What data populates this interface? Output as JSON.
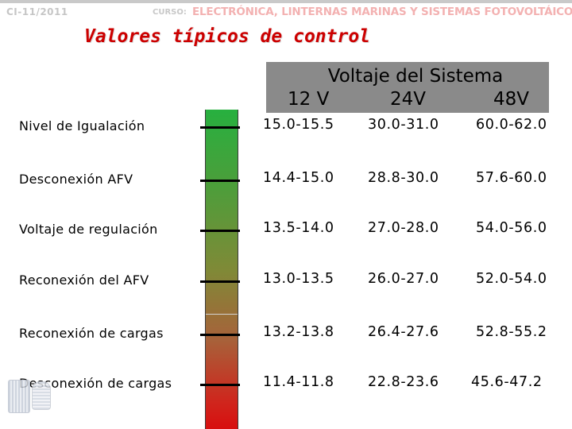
{
  "header": {
    "code": "CI-11/2011",
    "course_label": "CURSO:",
    "course_name": "ELECTRÓNICA, LINTERNAS MARINAS Y SISTEMAS FOTOVOLTÁICOS"
  },
  "title": "Valores típicos de control",
  "table": {
    "group_header": "Voltaje del Sistema",
    "columns": [
      "12 V",
      "24V",
      "48V"
    ],
    "rows": [
      {
        "label": "Nivel de Igualación",
        "v12": "15.0-15.5",
        "v24": "30.0-31.0",
        "v48": "60.0-62.0"
      },
      {
        "label": "Desconexión AFV",
        "v12": "14.4-15.0",
        "v24": "28.8-30.0",
        "v48": "57.6-60.0"
      },
      {
        "label": "Voltaje de regulación",
        "v12": "13.5-14.0",
        "v24": "27.0-28.0",
        "v48": "54.0-56.0"
      },
      {
        "label": "Reconexión del AFV",
        "v12": "13.0-13.5",
        "v24": "26.0-27.0",
        "v48": "52.0-54.0"
      },
      {
        "label": "Reconexión de cargas",
        "v12": "13.2-13.8",
        "v24": "26.4-27.6",
        "v48": "52.8-55.2"
      },
      {
        "label": "Desconexión de cargas",
        "v12": "11.4-11.8",
        "v24": "22.8-23.6",
        "v48": "45.6-47.2"
      }
    ]
  },
  "colors": {
    "title": "#cc0000",
    "header_box": "#8a8a8a",
    "bar_top": "#27b03f",
    "bar_bottom": "#d80f0f"
  }
}
